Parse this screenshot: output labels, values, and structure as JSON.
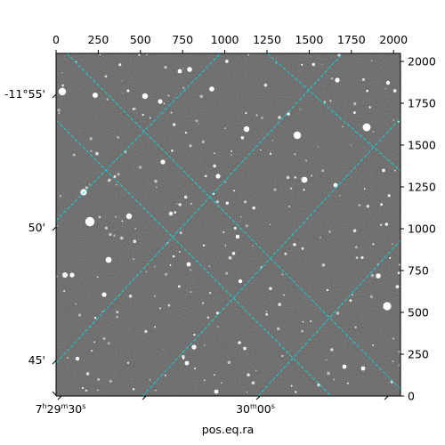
{
  "figure": {
    "xlabel": "pos.eq.ra",
    "pixel_axis_bottom_ticks": [
      "0",
      "250",
      "500",
      "750",
      "1000",
      "1250",
      "1500",
      "1750",
      "2000"
    ],
    "pixel_axis_right_ticks": [
      "0",
      "250",
      "500",
      "750",
      "1000",
      "1250",
      "1500",
      "1750",
      "2000"
    ],
    "ra_ticks": [
      {
        "h": "7",
        "m": "29",
        "s": "30"
      },
      {
        "m": "30",
        "s": "00"
      }
    ],
    "dec_ticks": [
      "-11°55'",
      "50'",
      "45'"
    ],
    "grid_color": "#00e0e0",
    "image_background": "#5e5e5e"
  }
}
